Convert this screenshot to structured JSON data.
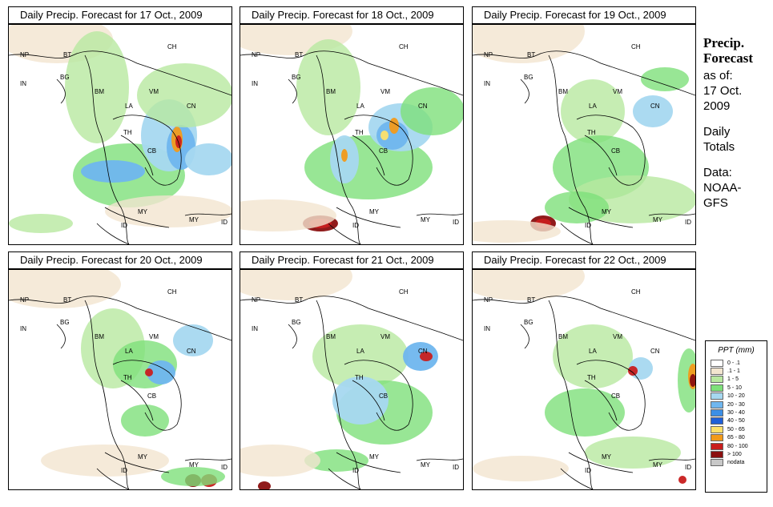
{
  "panels": [
    {
      "title": "Daily Precip. Forecast for  17 Oct., 2009"
    },
    {
      "title": "Daily Precip. Forecast for  18 Oct., 2009"
    },
    {
      "title": "Daily Precip. Forecast for  19 Oct., 2009"
    },
    {
      "title": "Daily Precip. Forecast for  20 Oct., 2009"
    },
    {
      "title": "Daily Precip. Forecast for  21 Oct., 2009"
    },
    {
      "title": "Daily Precip. Forecast for  22 Oct., 2009"
    }
  ],
  "map_labels": [
    "NP",
    "BT",
    "BG",
    "IN",
    "CH",
    "BM",
    "VM",
    "LA",
    "CN",
    "TH",
    "CB",
    "MY",
    "ID",
    "MY",
    "ID"
  ],
  "side": {
    "title_line1": "Precip.",
    "title_line2": "Forecast",
    "asof_line1": "as of:",
    "asof_line2": "17 Oct.",
    "asof_line3": "2009",
    "totals_line1": "Daily",
    "totals_line2": "Totals",
    "data_line1": "Data:",
    "data_line2": "NOAA-",
    "data_line3": "GFS"
  },
  "legend": {
    "title": "PPT (mm)",
    "items": [
      {
        "label": "0 - .1",
        "color": "#ffffff"
      },
      {
        "label": ".1 - 1",
        "color": "#f2e5cf"
      },
      {
        "label": "1 - 5",
        "color": "#b8e8a0"
      },
      {
        "label": "5 - 10",
        "color": "#7ee07a"
      },
      {
        "label": "10 - 20",
        "color": "#a6d8f0"
      },
      {
        "label": "20 - 30",
        "color": "#6fb6ee"
      },
      {
        "label": "30 - 40",
        "color": "#3c8fe6"
      },
      {
        "label": "40 - 50",
        "color": "#1f5fd8"
      },
      {
        "label": "50 - 65",
        "color": "#fde06a"
      },
      {
        "label": "65 - 80",
        "color": "#f29a1a"
      },
      {
        "label": "80 - 100",
        "color": "#c81d1d"
      },
      {
        "label": "> 100",
        "color": "#8a0f0f"
      },
      {
        "label": "nodata",
        "color": "#c8c8c8"
      }
    ]
  }
}
